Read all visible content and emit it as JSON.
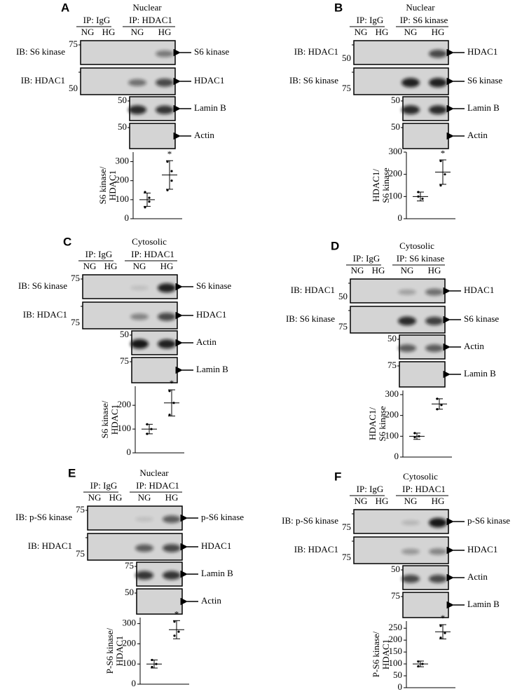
{
  "panels": [
    {
      "letter": "A",
      "fraction": "Nuclear",
      "ip": [
        "IP: IgG",
        "IP: HDAC1"
      ],
      "lanes": [
        "NG",
        "HG",
        "NG",
        "HG"
      ],
      "blots": [
        {
          "ib": "IB: S6 kinase",
          "mw": "75",
          "target": "S6 kinase"
        },
        {
          "ib": "IB: HDAC1",
          "mw": "50",
          "target": "HDAC1"
        },
        {
          "mw": "50",
          "target": "Lamin B"
        },
        {
          "mw": "50",
          "target": "Actin"
        }
      ]
    },
    {
      "letter": "B",
      "fraction": "Nuclear",
      "ip": [
        "IP: IgG",
        "IP: S6 kinase"
      ],
      "lanes": [
        "NG",
        "HG",
        "NG",
        "HG"
      ],
      "blots": [
        {
          "ib": "IB: HDAC1",
          "mw": "50",
          "target": "HDAC1"
        },
        {
          "ib": "IB: S6 kinase",
          "mw": "75",
          "target": "S6 kinase"
        },
        {
          "mw": "50",
          "target": "Lamin B"
        },
        {
          "mw": "50",
          "target": "Actin"
        }
      ]
    },
    {
      "letter": "C",
      "fraction": "Cytosolic",
      "ip": [
        "IP: IgG",
        "IP: HDAC1"
      ],
      "lanes": [
        "NG",
        "HG",
        "NG",
        "HG"
      ],
      "blots": [
        {
          "ib": "IB: S6 kinase",
          "mw": "75",
          "target": "S6 kinase"
        },
        {
          "ib": "IB: HDAC1",
          "mw": "75",
          "target": "HDAC1"
        },
        {
          "mw": "50",
          "target": "Actin"
        },
        {
          "mw": "75",
          "target": "Lamin B"
        }
      ]
    },
    {
      "letter": "D",
      "fraction": "Cytosolic",
      "ip": [
        "IP: IgG",
        "IP: S6 kinase"
      ],
      "lanes": [
        "NG",
        "HG",
        "NG",
        "HG"
      ],
      "blots": [
        {
          "ib": "IB: HDAC1",
          "mw": "50",
          "target": "HDAC1"
        },
        {
          "ib": "IB: S6 kinase",
          "mw": "75",
          "target": "S6 kinase"
        },
        {
          "mw": "50",
          "target": "Actin"
        },
        {
          "mw": "75",
          "target": "Lamin B"
        }
      ]
    },
    {
      "letter": "E",
      "fraction": "Nuclear",
      "ip": [
        "IP: IgG",
        "IP: HDAC1"
      ],
      "lanes": [
        "NG",
        "HG",
        "NG",
        "HG"
      ],
      "blots": [
        {
          "ib": "IB: p-S6 kinase",
          "mw": "75",
          "target": "p-S6 kinase"
        },
        {
          "ib": "IB: HDAC1",
          "mw": "75",
          "target": "HDAC1"
        },
        {
          "mw": "75",
          "target": "Lamin B"
        },
        {
          "mw": "50",
          "target": "Actin"
        }
      ]
    },
    {
      "letter": "F",
      "fraction": "Cytosolic",
      "ip": [
        "IP: IgG",
        "IP: HDAC1"
      ],
      "lanes": [
        "NG",
        "HG",
        "NG",
        "HG"
      ],
      "blots": [
        {
          "ib": "IB: p-S6 kinase",
          "mw": "75",
          "target": "p-S6 kinase"
        },
        {
          "ib": "IB: HDAC1",
          "mw": "75",
          "target": "HDAC1"
        },
        {
          "mw": "50",
          "target": "Actin"
        },
        {
          "mw": "75",
          "target": "Lamin B"
        }
      ]
    }
  ],
  "chart_data": [
    {
      "type": "scatter",
      "ylabel": [
        "S6 kinase/",
        "HDAC1"
      ],
      "ylim": [
        0,
        350
      ],
      "yticks": [
        0,
        100,
        200,
        300
      ],
      "annotation": "*",
      "series": [
        {
          "values": [
            140,
            110,
            60,
            90
          ],
          "mean": 100,
          "error": 35
        },
        {
          "values": [
            300,
            250,
            150,
            200
          ],
          "mean": 230,
          "error": 75
        }
      ]
    },
    {
      "type": "scatter",
      "ylabel": [
        "HDAC1/",
        "S6 kinase"
      ],
      "ylim": [
        0,
        300
      ],
      "yticks": [
        0,
        100,
        200,
        300
      ],
      "annotation": "*",
      "series": [
        {
          "values": [
            120,
            90,
            100
          ],
          "mean": 100,
          "error": 20
        },
        {
          "values": [
            260,
            200,
            150
          ],
          "mean": 210,
          "error": 55
        }
      ]
    },
    {
      "type": "scatter",
      "ylabel": [
        "S6 kinase/",
        "HDAC1"
      ],
      "ylim": [
        0,
        280
      ],
      "yticks": [
        0,
        100,
        200
      ],
      "annotation": "*",
      "series": [
        {
          "values": [
            120,
            100,
            80
          ],
          "mean": 100,
          "error": 20
        },
        {
          "values": [
            260,
            210,
            160
          ],
          "mean": 210,
          "error": 55
        }
      ]
    },
    {
      "type": "scatter",
      "ylabel": [
        "HDAC1/",
        "S6 kinase"
      ],
      "ylim": [
        0,
        320
      ],
      "yticks": [
        0,
        100,
        200,
        300
      ],
      "series": [
        {
          "values": [
            115,
            100,
            95
          ],
          "mean": 100,
          "error": 15
        },
        {
          "values": [
            280,
            250,
            230
          ],
          "mean": 255,
          "error": 25
        }
      ]
    },
    {
      "type": "scatter",
      "ylabel": [
        "P-S6 kinase/",
        "HDAC1"
      ],
      "ylim": [
        0,
        330
      ],
      "yticks": [
        0,
        100,
        200,
        300
      ],
      "annotation": "*",
      "series": [
        {
          "values": [
            120,
            100,
            85
          ],
          "mean": 100,
          "error": 20
        },
        {
          "values": [
            310,
            260,
            240
          ],
          "mean": 270,
          "error": 45
        }
      ]
    },
    {
      "type": "scatter",
      "ylabel": [
        "P-S6 kinase/",
        "HDAC1"
      ],
      "ylim": [
        0,
        280
      ],
      "yticks": [
        0,
        50,
        100,
        150,
        200,
        250
      ],
      "annotation": "*",
      "series": [
        {
          "values": [
            110,
            100,
            90
          ],
          "mean": 100,
          "error": 12
        },
        {
          "values": [
            260,
            230,
            210
          ],
          "mean": 235,
          "error": 30
        }
      ]
    }
  ]
}
